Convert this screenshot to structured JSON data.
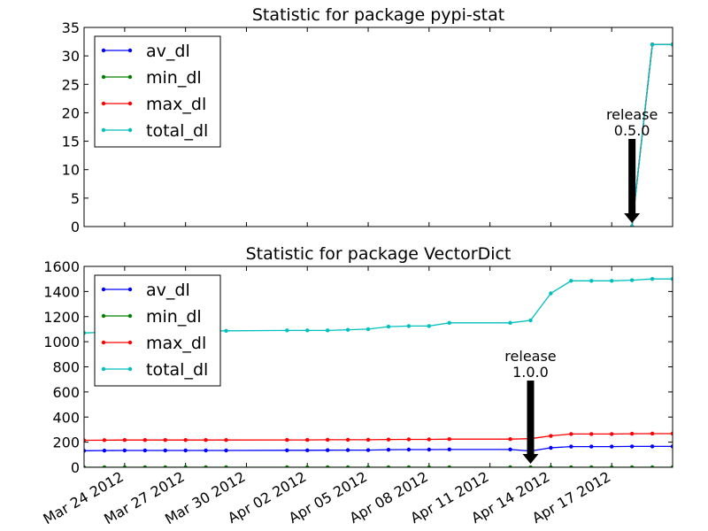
{
  "chart_data": [
    {
      "type": "line",
      "title": "Statistic for package pypi-stat",
      "xlabel": "",
      "ylabel": "",
      "ylim": [
        0,
        35
      ],
      "yticks": [
        0,
        5,
        10,
        15,
        20,
        25,
        30,
        35
      ],
      "x": [
        "2012-04-18",
        "2012-04-19",
        "2012-04-20"
      ],
      "series": [
        {
          "name": "av_dl",
          "color": "#0000ff",
          "values": [
            0,
            32,
            32
          ]
        },
        {
          "name": "min_dl",
          "color": "#008000",
          "values": [
            0,
            32,
            32
          ]
        },
        {
          "name": "max_dl",
          "color": "#ff0000",
          "values": [
            0,
            32,
            32
          ]
        },
        {
          "name": "total_dl",
          "color": "#00bfbf",
          "values": [
            0,
            32,
            32
          ]
        }
      ],
      "legend": "top-left",
      "annotation": {
        "text": "release\n0.5.0",
        "x": "2012-04-18"
      }
    },
    {
      "type": "line",
      "title": "Statistic for package VectorDict",
      "xlabel": "",
      "ylabel": "",
      "ylim": [
        0,
        1600
      ],
      "yticks": [
        0,
        200,
        400,
        600,
        800,
        1000,
        1200,
        1400,
        1600
      ],
      "x": [
        "2012-03-22",
        "2012-03-23",
        "2012-03-24",
        "2012-03-25",
        "2012-03-26",
        "2012-03-27",
        "2012-03-28",
        "2012-03-29",
        "2012-04-01",
        "2012-04-02",
        "2012-04-03",
        "2012-04-04",
        "2012-04-05",
        "2012-04-06",
        "2012-04-07",
        "2012-04-08",
        "2012-04-09",
        "2012-04-12",
        "2012-04-13",
        "2012-04-14",
        "2012-04-15",
        "2012-04-16",
        "2012-04-17",
        "2012-04-18",
        "2012-04-19",
        "2012-04-20"
      ],
      "series": [
        {
          "name": "av_dl",
          "color": "#0000ff",
          "values": [
            132,
            133,
            134,
            134,
            134,
            134,
            134,
            134,
            135,
            135,
            136,
            137,
            137,
            140,
            141,
            141,
            142,
            142,
            130,
            155,
            165,
            165,
            165,
            166,
            166,
            166
          ]
        },
        {
          "name": "min_dl",
          "color": "#008000",
          "values": [
            0,
            0,
            0,
            0,
            0,
            0,
            0,
            0,
            0,
            0,
            0,
            0,
            0,
            0,
            0,
            0,
            0,
            0,
            0,
            0,
            0,
            0,
            0,
            0,
            0,
            0
          ]
        },
        {
          "name": "max_dl",
          "color": "#ff0000",
          "values": [
            215,
            216,
            217,
            217,
            217,
            217,
            217,
            217,
            218,
            218,
            219,
            219,
            219,
            221,
            222,
            222,
            224,
            224,
            228,
            250,
            265,
            265,
            265,
            267,
            268,
            268
          ]
        },
        {
          "name": "total_dl",
          "color": "#00bfbf",
          "values": [
            1070,
            1075,
            1080,
            1082,
            1083,
            1084,
            1085,
            1087,
            1090,
            1090,
            1090,
            1095,
            1100,
            1120,
            1125,
            1125,
            1150,
            1150,
            1170,
            1385,
            1485,
            1485,
            1485,
            1490,
            1500,
            1500
          ]
        }
      ],
      "legend": "top-left",
      "annotation": {
        "text": "release\n1.0.0",
        "x": "2012-04-13"
      }
    }
  ],
  "x_axis": {
    "range": [
      "2012-03-22",
      "2012-04-20"
    ],
    "ticks": [
      "2012-03-24",
      "2012-03-27",
      "2012-03-30",
      "2012-04-02",
      "2012-04-05",
      "2012-04-08",
      "2012-04-11",
      "2012-04-14",
      "2012-04-17"
    ],
    "tick_labels": [
      "Mar 24 2012",
      "Mar 27 2012",
      "Mar 30 2012",
      "Apr 02 2012",
      "Apr 05 2012",
      "Apr 08 2012",
      "Apr 11 2012",
      "Apr 14 2012",
      "Apr 17 2012"
    ]
  }
}
